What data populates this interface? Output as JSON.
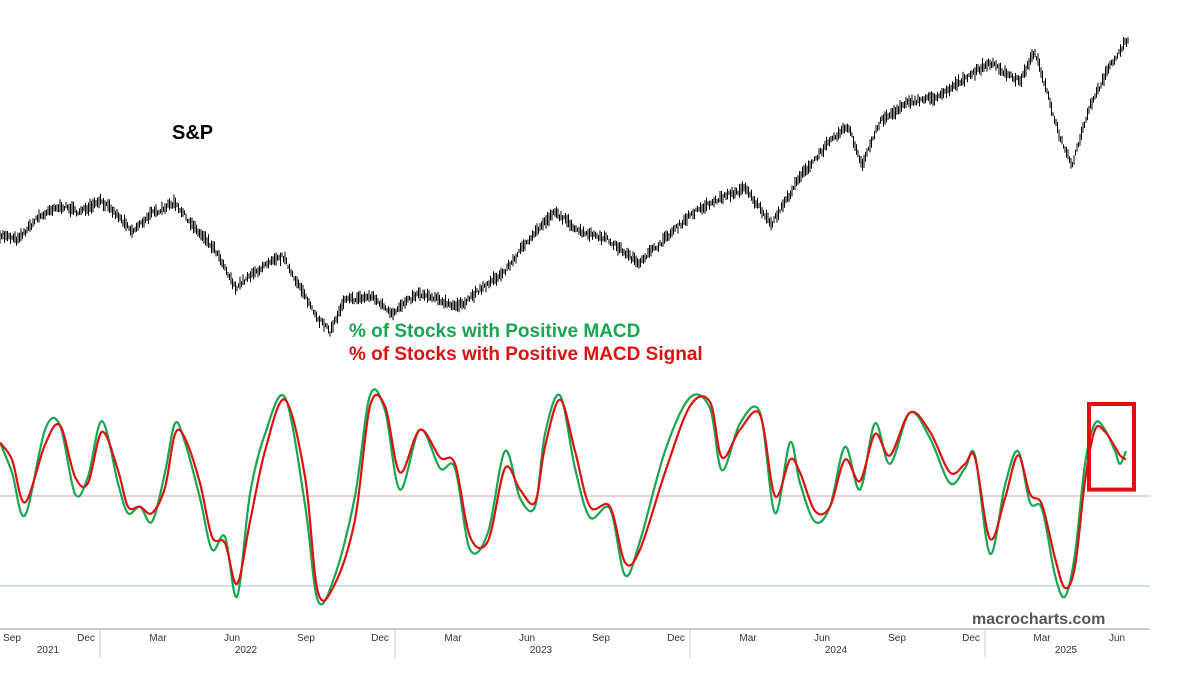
{
  "chart_data": [
    {
      "type": "line",
      "name": "sp",
      "title": "S&P",
      "color": "#000000",
      "x": [
        0,
        18,
        38,
        62,
        80,
        100,
        118,
        132,
        150,
        175,
        195,
        215,
        235,
        260,
        283,
        300,
        318,
        330,
        345,
        372,
        392,
        418,
        440,
        458,
        485,
        505,
        530,
        555,
        580,
        605,
        638,
        660,
        690,
        720,
        745,
        772,
        800,
        825,
        848,
        862,
        880,
        910,
        940,
        965,
        990,
        1020,
        1035,
        1060,
        1072,
        1090,
        1110,
        1128
      ],
      "y": [
        4420,
        4380,
        4560,
        4650,
        4600,
        4700,
        4570,
        4440,
        4580,
        4680,
        4470,
        4300,
        4000,
        4150,
        4250,
        4000,
        3760,
        3650,
        3900,
        3930,
        3800,
        3950,
        3900,
        3850,
        4010,
        4130,
        4400,
        4600,
        4450,
        4400,
        4200,
        4350,
        4580,
        4710,
        4790,
        4510,
        4880,
        5120,
        5290,
        4980,
        5320,
        5480,
        5520,
        5670,
        5790,
        5640,
        5880,
        5200,
        4980,
        5450,
        5760,
        5980
      ]
    },
    {
      "type": "line",
      "ylim": [
        0,
        100
      ],
      "xlabel": "",
      "ylabel": "",
      "x_ticks": [
        "Sep",
        "Dec",
        "Mar",
        "Jun",
        "Sep",
        "Dec",
        "Mar",
        "Jun",
        "Sep",
        "Dec",
        "Mar",
        "Jun",
        "Sep",
        "Dec",
        "Mar",
        "Jun"
      ],
      "x_years": [
        "2021",
        "2022",
        "2023",
        "2024",
        "2025"
      ],
      "legend": [
        "% of Stocks with Positive MACD",
        "% of Stocks with Positive MACD Signal"
      ],
      "series": [
        {
          "name": "% of Stocks with Positive MACD",
          "color": "#1aa552",
          "x": [
            0,
            12,
            25,
            45,
            60,
            75,
            88,
            102,
            118,
            128,
            140,
            152,
            165,
            175,
            185,
            200,
            212,
            225,
            237,
            250,
            265,
            285,
            305,
            318,
            335,
            355,
            370,
            385,
            400,
            420,
            440,
            455,
            470,
            488,
            505,
            520,
            535,
            545,
            560,
            575,
            590,
            610,
            625,
            640,
            665,
            690,
            710,
            722,
            740,
            760,
            775,
            790,
            800,
            815,
            830,
            845,
            860,
            875,
            890,
            910,
            930,
            950,
            965,
            975,
            990,
            1005,
            1018,
            1030,
            1042,
            1055,
            1065,
            1075,
            1085,
            1095,
            1105,
            1115,
            1120,
            1126
          ],
          "y": [
            82,
            68,
            48,
            88,
            90,
            58,
            66,
            92,
            63,
            49,
            52,
            45,
            68,
            91,
            82,
            56,
            32,
            38,
            10,
            58,
            86,
            103,
            53,
            8,
            20,
            57,
            104,
            97,
            60,
            88,
            70,
            70,
            32,
            40,
            78,
            56,
            52,
            86,
            104,
            70,
            47,
            51,
            20,
            36,
            78,
            103,
            98,
            69,
            91,
            96,
            49,
            82,
            63,
            45,
            52,
            80,
            60,
            91,
            72,
            96,
            84,
            63,
            70,
            76,
            30,
            62,
            78,
            54,
            51,
            20,
            10,
            30,
            72,
            91,
            88,
            78,
            72,
            78
          ]
        },
        {
          "name": "% of Stocks with Positive MACD Signal",
          "color": "#dd1111",
          "x": [
            0,
            12,
            25,
            45,
            60,
            75,
            88,
            102,
            118,
            128,
            140,
            152,
            165,
            175,
            185,
            200,
            212,
            225,
            237,
            250,
            265,
            285,
            305,
            318,
            335,
            355,
            370,
            385,
            400,
            420,
            440,
            455,
            470,
            488,
            505,
            520,
            535,
            545,
            560,
            575,
            590,
            610,
            625,
            640,
            665,
            690,
            710,
            722,
            740,
            760,
            775,
            790,
            800,
            815,
            830,
            845,
            860,
            875,
            890,
            910,
            930,
            950,
            965,
            975,
            990,
            1005,
            1018,
            1030,
            1042,
            1055,
            1065,
            1075,
            1085,
            1095,
            1105,
            1115,
            1120,
            1126
          ],
          "y": [
            82,
            74,
            54,
            81,
            90,
            66,
            63,
            87,
            69,
            52,
            52,
            49,
            61,
            86,
            84,
            63,
            38,
            35,
            16,
            45,
            78,
            102,
            66,
            12,
            16,
            46,
            99,
            99,
            68,
            88,
            75,
            72,
            38,
            36,
            70,
            60,
            54,
            80,
            102,
            78,
            52,
            52,
            26,
            32,
            68,
            99,
            101,
            75,
            88,
            95,
            57,
            74,
            68,
            50,
            52,
            74,
            64,
            86,
            76,
            96,
            87,
            68,
            72,
            75,
            37,
            56,
            76,
            58,
            53,
            28,
            14,
            24,
            64,
            88,
            87,
            80,
            76,
            74
          ]
        }
      ],
      "reference_lines": [
        {
          "value": 57,
          "color": "#e8b0b0"
        },
        {
          "value": 15,
          "color": "#b8cbe8"
        }
      ],
      "annotations": [
        {
          "type": "box",
          "color": "#dd1111",
          "x_from": 1089,
          "x_to": 1134,
          "y_from": 60,
          "y_to": 100
        }
      ]
    }
  ],
  "watermark": "macrocharts.com",
  "colors": {
    "green": "#1aa552",
    "red": "#dd1111",
    "grid_red": "#e8b0b0",
    "grid_blue": "#b8cbe8"
  }
}
